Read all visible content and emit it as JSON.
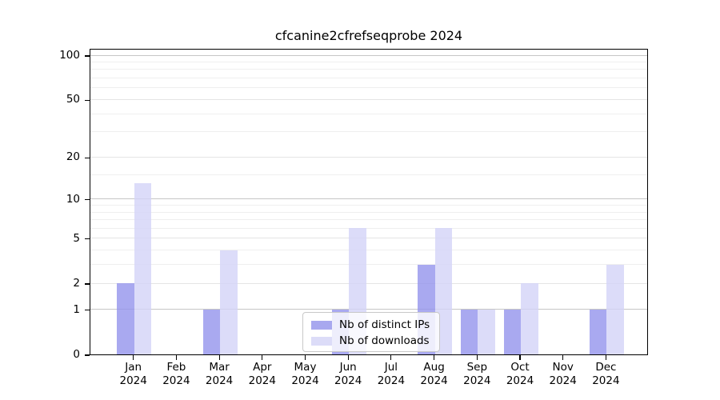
{
  "chart_data": {
    "type": "bar",
    "title": "cfcanine2cfrefseqprobe 2024",
    "scale": "log1p",
    "grid": true,
    "legend_position": "lower center",
    "year": "2024",
    "categories": [
      "Jan",
      "Feb",
      "Mar",
      "Apr",
      "May",
      "Jun",
      "Jul",
      "Aug",
      "Sep",
      "Oct",
      "Nov",
      "Dec"
    ],
    "series": [
      {
        "name": "Nb of distinct IPs",
        "color": "#a8a8ef",
        "fill": "rgba(147,147,236,0.8)",
        "values": [
          2,
          0,
          1,
          0,
          0,
          1,
          0,
          3,
          1,
          1,
          0,
          1
        ]
      },
      {
        "name": "Nb of downloads",
        "color": "#dcdcf8",
        "fill": "rgba(211,211,247,0.8)",
        "values": [
          13,
          0,
          4,
          0,
          0,
          6,
          0,
          6,
          1,
          2,
          0,
          3
        ]
      }
    ],
    "y_ticks": [
      0,
      1,
      2,
      5,
      10,
      20,
      50,
      100
    ],
    "y_minor_gridlines": [
      3,
      4,
      6,
      7,
      8,
      9,
      15,
      30,
      40,
      60,
      70,
      80,
      90
    ],
    "ylim": [
      0,
      112
    ],
    "xlabel": "",
    "ylabel": ""
  },
  "style": {
    "major_gridline_color": "#c6c6c6",
    "mid_gridline_color": "#e4e4e4",
    "minor_gridline_color": "#efefef",
    "axis_color": "#000000",
    "background": "#ffffff"
  }
}
